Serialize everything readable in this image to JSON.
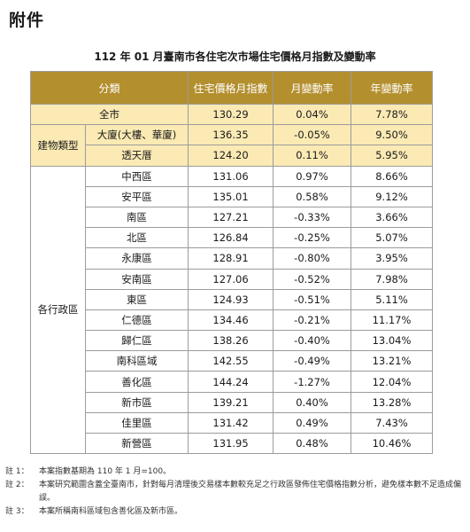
{
  "heading": "附件",
  "title": "112 年 01 月臺南市各住宅次市場住宅價格月指數及變動率",
  "table": {
    "headers": [
      "分類",
      "住宅價格月指數",
      "月變動率",
      "年變動率"
    ],
    "overall": {
      "label": "全市",
      "index": "130.29",
      "mom": "0.04%",
      "yoy": "7.78%"
    },
    "building_group": {
      "label": "建物類型",
      "rows": [
        {
          "label": "大廈(大樓、華廈)",
          "index": "136.35",
          "mom": "-0.05%",
          "yoy": "9.50%"
        },
        {
          "label": "透天厝",
          "index": "124.20",
          "mom": "0.11%",
          "yoy": "5.95%"
        }
      ]
    },
    "district_group": {
      "label": "各行政區",
      "rows": [
        {
          "label": "中西區",
          "index": "131.06",
          "mom": "0.97%",
          "yoy": "8.66%"
        },
        {
          "label": "安平區",
          "index": "135.01",
          "mom": "0.58%",
          "yoy": "9.12%"
        },
        {
          "label": "南區",
          "index": "127.21",
          "mom": "-0.33%",
          "yoy": "3.66%"
        },
        {
          "label": "北區",
          "index": "126.84",
          "mom": "-0.25%",
          "yoy": "5.07%"
        },
        {
          "label": "永康區",
          "index": "128.91",
          "mom": "-0.80%",
          "yoy": "3.95%"
        },
        {
          "label": "安南區",
          "index": "127.06",
          "mom": "-0.52%",
          "yoy": "7.98%"
        },
        {
          "label": "東區",
          "index": "124.93",
          "mom": "-0.51%",
          "yoy": "5.11%"
        },
        {
          "label": "仁德區",
          "index": "134.46",
          "mom": "-0.21%",
          "yoy": "11.17%"
        },
        {
          "label": "歸仁區",
          "index": "138.26",
          "mom": "-0.40%",
          "yoy": "13.04%"
        },
        {
          "label": "南科區域",
          "index": "142.55",
          "mom": "-0.49%",
          "yoy": "13.21%"
        },
        {
          "label": "善化區",
          "index": "144.24",
          "mom": "-1.27%",
          "yoy": "12.04%"
        },
        {
          "label": "新市區",
          "index": "139.21",
          "mom": "0.40%",
          "yoy": "13.28%"
        },
        {
          "label": "佳里區",
          "index": "131.42",
          "mom": "0.49%",
          "yoy": "7.43%"
        },
        {
          "label": "新營區",
          "index": "131.95",
          "mom": "0.48%",
          "yoy": "10.46%"
        }
      ]
    }
  },
  "notes": [
    {
      "label": "註 1：",
      "text": "本案指數基期為 110 年 1 月=100。"
    },
    {
      "label": "註 2：",
      "text": "本案研究範圍含蓋全臺南市，針對每月清理後交易樣本數較充足之行政區發佈住宅價格指數分析，避免樣本數不足造成偏誤。"
    },
    {
      "label": "註 3：",
      "text": "本案所稱南科區域包含善化區及新市區。"
    }
  ],
  "colors": {
    "header_bg": "#b38f2e",
    "highlight_bg": "#fbeab4",
    "border": "#9c9c9c"
  }
}
